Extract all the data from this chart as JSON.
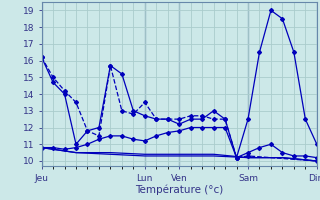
{
  "background_color": "#cce8e8",
  "grid_color": "#aacccc",
  "line_color": "#0000bb",
  "xlabel": "Température (°c)",
  "ylabel_ticks": [
    10,
    11,
    12,
    13,
    14,
    15,
    16,
    17,
    18,
    19
  ],
  "ylim": [
    9.7,
    19.5
  ],
  "xlim": [
    0,
    192
  ],
  "day_labels": [
    "Jeu",
    "Lun",
    "Ven",
    "Sam",
    "Dim"
  ],
  "day_positions": [
    0,
    72,
    96,
    144,
    192
  ],
  "total_hours": 192,
  "series": [
    {
      "x": [
        0,
        8,
        16,
        24,
        32,
        40,
        48,
        56,
        64,
        72,
        80,
        88,
        96,
        104,
        112,
        120,
        128,
        136,
        144,
        152,
        160,
        168,
        176,
        184,
        192
      ],
      "y": [
        16.2,
        14.7,
        14.0,
        11.0,
        11.8,
        12.0,
        15.7,
        15.2,
        13.0,
        12.7,
        12.5,
        12.5,
        12.2,
        12.5,
        12.5,
        13.0,
        12.5,
        10.2,
        12.5,
        16.5,
        19.0,
        18.5,
        16.5,
        12.5,
        11.0
      ],
      "dashed": false,
      "has_markers": true
    },
    {
      "x": [
        0,
        8,
        16,
        24,
        32,
        40,
        48,
        56,
        64,
        72,
        80,
        88,
        96,
        104,
        112,
        120,
        128,
        136,
        144,
        192
      ],
      "y": [
        16.2,
        15.0,
        14.2,
        13.5,
        11.8,
        11.5,
        15.7,
        13.0,
        12.8,
        13.5,
        12.5,
        12.5,
        12.5,
        12.7,
        12.7,
        12.5,
        12.5,
        10.2,
        10.3,
        10.0
      ],
      "dashed": true,
      "has_markers": true
    },
    {
      "x": [
        0,
        8,
        16,
        24,
        32,
        40,
        48,
        56,
        64,
        72,
        80,
        88,
        96,
        104,
        112,
        120,
        128,
        136,
        144,
        152,
        160,
        168,
        176,
        184,
        192
      ],
      "y": [
        10.8,
        10.8,
        10.7,
        10.8,
        11.0,
        11.3,
        11.5,
        11.5,
        11.3,
        11.2,
        11.5,
        11.7,
        11.8,
        12.0,
        12.0,
        12.0,
        12.0,
        10.2,
        10.5,
        10.8,
        11.0,
        10.5,
        10.3,
        10.3,
        10.2
      ],
      "dashed": false,
      "has_markers": true
    },
    {
      "x": [
        0,
        24,
        48,
        72,
        96,
        120,
        144,
        168,
        192
      ],
      "y": [
        10.8,
        10.5,
        10.5,
        10.4,
        10.4,
        10.4,
        10.2,
        10.2,
        10.0
      ],
      "dashed": false,
      "has_markers": false
    },
    {
      "x": [
        0,
        24,
        48,
        72,
        96,
        120,
        144,
        168,
        192
      ],
      "y": [
        10.8,
        10.5,
        10.4,
        10.3,
        10.3,
        10.3,
        10.2,
        10.2,
        10.0
      ],
      "dashed": false,
      "has_markers": false
    }
  ]
}
